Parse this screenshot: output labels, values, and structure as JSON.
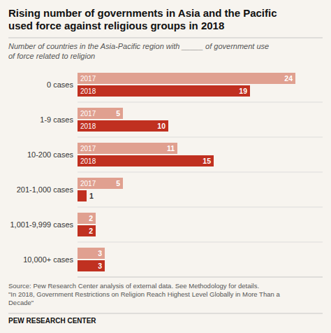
{
  "chart_data": {
    "type": "bar",
    "orientation": "horizontal",
    "title": "Rising number of governments in Asia and the Pacific\nused force against religious groups in 2018",
    "subtitle": "Number of countries in the Asia-Pacific region with _____ of government use\nof force related to religion",
    "categories": [
      "0 cases",
      "1-9 cases",
      "10-200 cases",
      "201-1,000 cases",
      "1,001-9,999 cases",
      "10,000+ cases"
    ],
    "series": [
      {
        "name": "2017",
        "color": "#e0a090",
        "values": [
          24,
          5,
          11,
          5,
          2,
          3
        ]
      },
      {
        "name": "2018",
        "color": "#c03020",
        "values": [
          19,
          10,
          15,
          1,
          2,
          3
        ]
      }
    ],
    "xlim": [
      0,
      27
    ],
    "data_labels": true,
    "tick_labels": "y",
    "source": "Source: Pew Research Center analysis of external data. See Methodology for details.\n\"In 2018, Government Restrictions on Religion Reach Highest Level Globally in More Than a\nDecade\"",
    "footer": "PEW RESEARCH CENTER"
  }
}
